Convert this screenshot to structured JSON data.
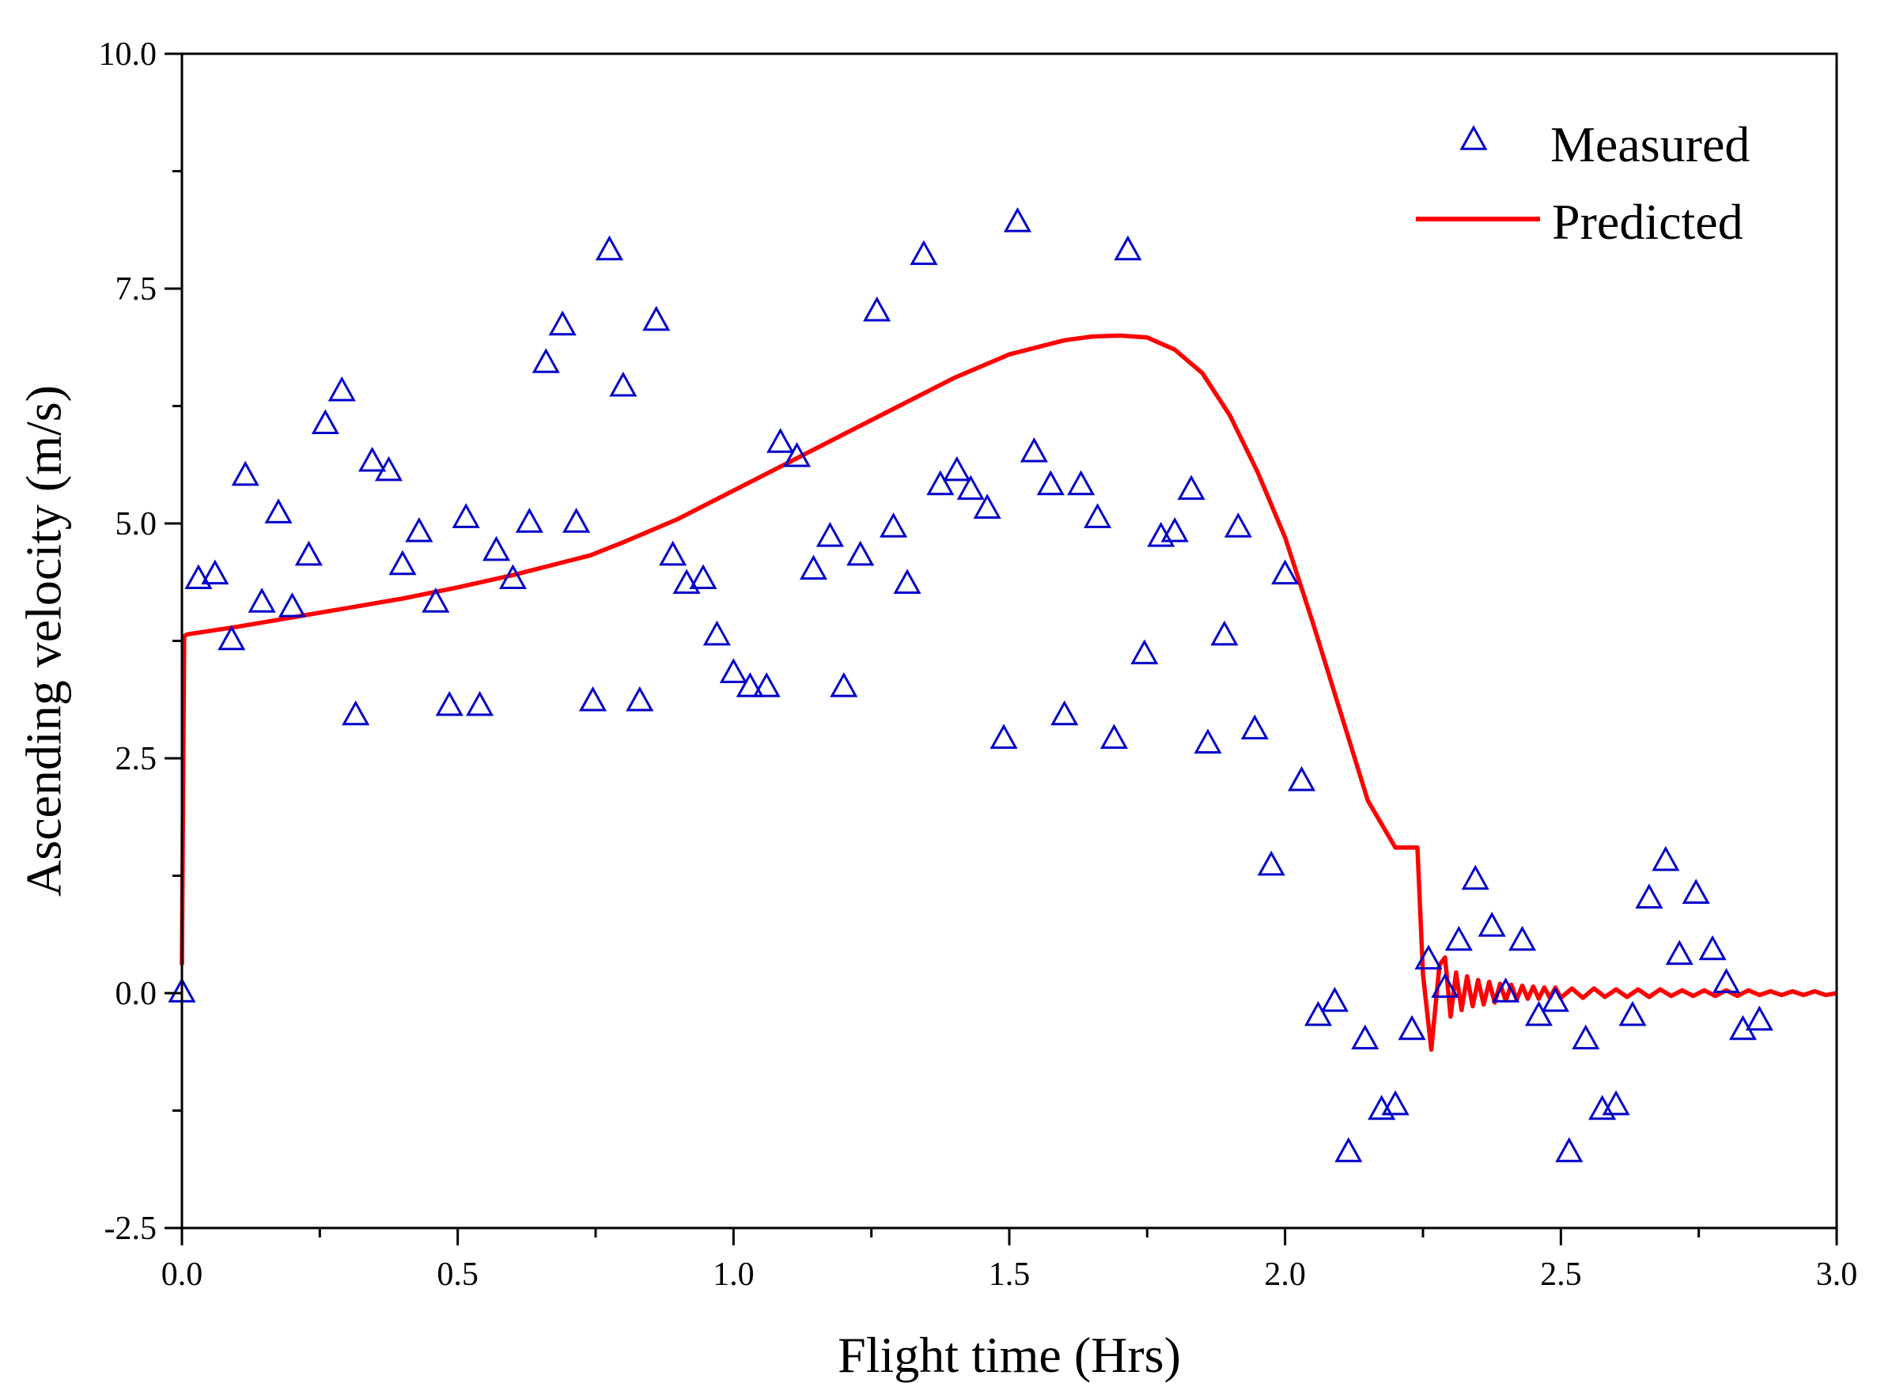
{
  "chart_data": {
    "type": "scatter",
    "title": "",
    "xlabel": "Flight time (Hrs)",
    "ylabel": "Ascending velocity (m/s)",
    "xlim": [
      0.0,
      3.0
    ],
    "ylim": [
      -2.5,
      10.0
    ],
    "x_ticks": [
      0.0,
      0.5,
      1.0,
      1.5,
      2.0,
      2.5,
      3.0
    ],
    "x_tick_labels": [
      "0.0",
      "0.5",
      "1.0",
      "1.5",
      "2.0",
      "2.5",
      "3.0"
    ],
    "y_ticks": [
      -2.5,
      0.0,
      2.5,
      5.0,
      7.5,
      10.0
    ],
    "y_tick_labels": [
      "-2.5",
      "0.0",
      "2.5",
      "5.0",
      "7.5",
      "10.0"
    ],
    "grid": false,
    "legend_position": "top-right",
    "series": [
      {
        "name": "Measured",
        "kind": "scatter",
        "marker": "triangle-open",
        "color": "#0000CC",
        "x": [
          0.0,
          0.03,
          0.06,
          0.09,
          0.115,
          0.145,
          0.175,
          0.2,
          0.23,
          0.26,
          0.29,
          0.315,
          0.345,
          0.375,
          0.4,
          0.43,
          0.46,
          0.485,
          0.515,
          0.54,
          0.57,
          0.6,
          0.63,
          0.66,
          0.69,
          0.715,
          0.745,
          0.775,
          0.8,
          0.83,
          0.86,
          0.89,
          0.915,
          0.945,
          0.97,
          1.0,
          1.03,
          1.06,
          1.085,
          1.115,
          1.145,
          1.175,
          1.2,
          1.23,
          1.26,
          1.29,
          1.315,
          1.345,
          1.375,
          1.405,
          1.43,
          1.46,
          1.49,
          1.515,
          1.545,
          1.575,
          1.6,
          1.63,
          1.66,
          1.69,
          1.715,
          1.745,
          1.775,
          1.8,
          1.83,
          1.86,
          1.89,
          1.915,
          1.945,
          1.975,
          2.0,
          2.03,
          2.06,
          2.09,
          2.115,
          2.145,
          2.175,
          2.2,
          2.23,
          2.26,
          2.29,
          2.315,
          2.345,
          2.375,
          2.4,
          2.43,
          2.46,
          2.49,
          2.515,
          2.545,
          2.575,
          2.6,
          2.63,
          2.66,
          2.69,
          2.715,
          2.745,
          2.775,
          2.8,
          2.83,
          2.86
        ],
        "y": [
          0.0,
          4.4,
          4.45,
          3.75,
          5.5,
          4.15,
          5.1,
          4.1,
          4.65,
          6.05,
          6.4,
          2.95,
          5.65,
          5.55,
          4.55,
          4.9,
          4.15,
          3.05,
          5.05,
          3.05,
          4.7,
          4.4,
          5.0,
          6.7,
          7.1,
          5.0,
          3.1,
          7.9,
          6.45,
          3.1,
          7.15,
          4.65,
          4.35,
          4.4,
          3.8,
          3.4,
          3.25,
          3.25,
          5.85,
          5.7,
          4.5,
          4.85,
          3.25,
          4.65,
          7.25,
          4.95,
          4.35,
          7.85,
          5.4,
          5.55,
          5.35,
          5.15,
          2.7,
          8.2,
          5.75,
          5.4,
          2.95,
          5.4,
          5.05,
          2.7,
          7.9,
          3.6,
          4.85,
          4.9,
          5.35,
          2.65,
          3.8,
          4.95,
          2.8,
          1.35,
          4.45,
          2.25,
          -0.25,
          -0.1,
          -1.7,
          -0.5,
          -1.25,
          -1.2,
          -0.4,
          0.35,
          0.05,
          0.55,
          1.2,
          0.7,
          0.0,
          0.55,
          -0.25,
          -0.1,
          -1.7,
          -0.5,
          -1.25,
          -1.2,
          -0.25,
          1.0,
          1.4,
          0.4,
          1.05,
          0.45,
          0.1,
          -0.4,
          -0.3
        ]
      },
      {
        "name": "Predicted",
        "kind": "line",
        "color": "#FF0000",
        "x": [
          0.0,
          0.004,
          0.01,
          0.1,
          0.2,
          0.3,
          0.4,
          0.5,
          0.6,
          0.7,
          0.74,
          0.8,
          0.9,
          1.0,
          1.1,
          1.2,
          1.3,
          1.4,
          1.5,
          1.6,
          1.65,
          1.7,
          1.75,
          1.8,
          1.85,
          1.9,
          1.95,
          2.0,
          2.05,
          2.1,
          2.15,
          2.2,
          2.24,
          2.25,
          2.265,
          2.28,
          2.29,
          2.3,
          2.31,
          2.32,
          2.33,
          2.34,
          2.35,
          2.36,
          2.37,
          2.38,
          2.39,
          2.4,
          2.41,
          2.42,
          2.43,
          2.44,
          2.45,
          2.46,
          2.47,
          2.48,
          2.49,
          2.5,
          2.52,
          2.54,
          2.56,
          2.58,
          2.6,
          2.62,
          2.64,
          2.66,
          2.68,
          2.7,
          2.72,
          2.74,
          2.76,
          2.78,
          2.8,
          2.82,
          2.84,
          2.86,
          2.88,
          2.9,
          2.92,
          2.94,
          2.96,
          2.98,
          3.0
        ],
        "y": [
          0.3,
          3.8,
          3.82,
          3.9,
          4.0,
          4.1,
          4.2,
          4.32,
          4.45,
          4.6,
          4.66,
          4.8,
          5.05,
          5.35,
          5.65,
          5.95,
          6.25,
          6.55,
          6.8,
          6.95,
          6.99,
          7.0,
          6.98,
          6.85,
          6.6,
          6.15,
          5.55,
          4.85,
          3.95,
          3.0,
          2.05,
          1.55,
          1.55,
          0.2,
          -0.6,
          0.3,
          0.38,
          -0.25,
          0.22,
          -0.18,
          0.18,
          -0.14,
          0.14,
          -0.12,
          0.12,
          -0.1,
          0.1,
          -0.08,
          0.09,
          -0.07,
          0.08,
          -0.06,
          0.07,
          -0.06,
          0.06,
          -0.05,
          0.06,
          -0.05,
          0.05,
          -0.05,
          0.05,
          -0.04,
          0.04,
          -0.04,
          0.04,
          -0.04,
          0.04,
          -0.03,
          0.03,
          -0.03,
          0.03,
          -0.03,
          0.03,
          -0.03,
          0.03,
          -0.02,
          0.02,
          -0.02,
          0.02,
          -0.02,
          0.02,
          -0.02,
          0.0
        ]
      }
    ]
  }
}
